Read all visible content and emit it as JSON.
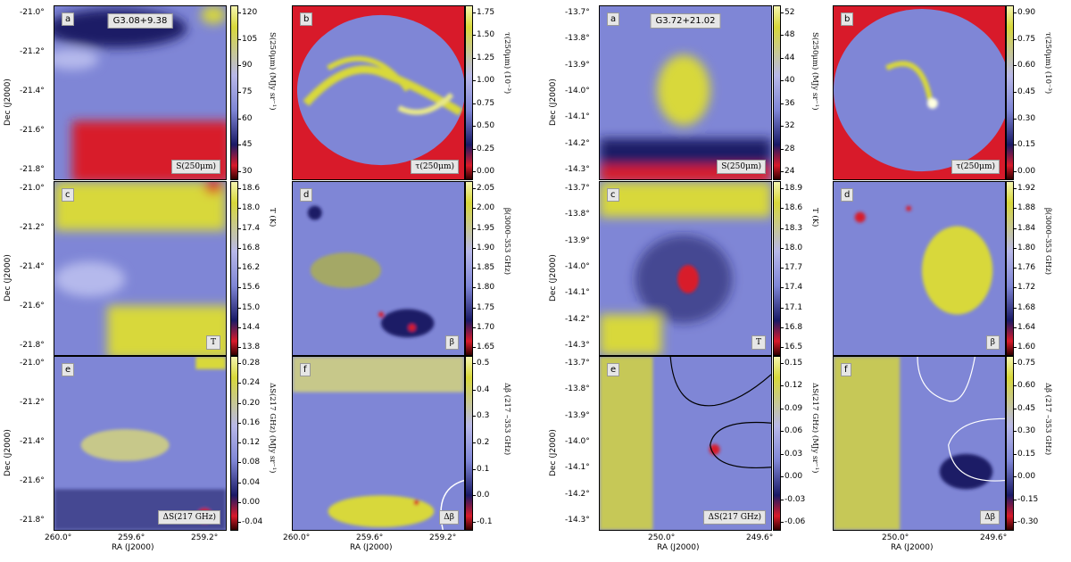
{
  "figure_left": {
    "source_title": "G3.08+9.38",
    "ra_ticks": [
      "260.0°",
      "259.6°",
      "259.2°"
    ],
    "dec_ticks": [
      "-21.0°",
      "-21.2°",
      "-21.4°",
      "-21.6°",
      "-21.8°"
    ],
    "ra_axis_label": "RA (J2000)",
    "dec_axis_label": "Dec (J2000)",
    "panels": [
      {
        "letter": "a",
        "quantity": "S(250μm)",
        "cbar_label": "S(250μm) (MJy sr⁻¹)",
        "cbar_ticks": [
          "120",
          "105",
          "90",
          "75",
          "60",
          "45",
          "30"
        ]
      },
      {
        "letter": "b",
        "quantity": "τ(250μm)",
        "cbar_label": "τ(250μm) (10⁻³)",
        "cbar_ticks": [
          "1.75",
          "1.50",
          "1.25",
          "1.00",
          "0.75",
          "0.50",
          "0.25",
          "0.00"
        ]
      },
      {
        "letter": "c",
        "quantity": "T",
        "cbar_label": "T (K)",
        "cbar_ticks": [
          "18.6",
          "18.0",
          "17.4",
          "16.8",
          "16.2",
          "15.6",
          "15.0",
          "14.4",
          "13.8"
        ]
      },
      {
        "letter": "d",
        "quantity": "β",
        "cbar_label": "β(3000–353 GHz)",
        "cbar_ticks": [
          "2.05",
          "2.00",
          "1.95",
          "1.90",
          "1.85",
          "1.80",
          "1.75",
          "1.70",
          "1.65"
        ]
      },
      {
        "letter": "e",
        "quantity": "ΔS(217 GHz)",
        "cbar_label": "ΔS(217 GHz) (MJy sr⁻¹)",
        "cbar_ticks": [
          "0.28",
          "0.24",
          "0.20",
          "0.16",
          "0.12",
          "0.08",
          "0.04",
          "0.00",
          "-0.04"
        ]
      },
      {
        "letter": "f",
        "quantity": "Δβ",
        "cbar_label": "Δβ (217 –353 GHz)",
        "cbar_ticks": [
          "0.5",
          "0.4",
          "0.3",
          "0.2",
          "0.1",
          "0.0",
          "-0.1"
        ]
      }
    ]
  },
  "figure_right": {
    "source_title": "G3.72+21.02",
    "ra_ticks": [
      "250.0°",
      "249.6°"
    ],
    "dec_ticks": [
      "-13.7°",
      "-13.8°",
      "-13.9°",
      "-14.0°",
      "-14.1°",
      "-14.2°",
      "-14.3°"
    ],
    "ra_axis_label": "RA (J2000)",
    "dec_axis_label": "Dec (J2000)",
    "panels": [
      {
        "letter": "a",
        "quantity": "S(250μm)",
        "cbar_label": "S(250μm) (MJy sr⁻¹)",
        "cbar_ticks": [
          "52",
          "48",
          "44",
          "40",
          "36",
          "32",
          "28",
          "24"
        ]
      },
      {
        "letter": "b",
        "quantity": "τ(250μm)",
        "cbar_label": "τ(250μm) (10⁻³)",
        "cbar_ticks": [
          "0.90",
          "0.75",
          "0.60",
          "0.45",
          "0.30",
          "0.15",
          "0.00"
        ]
      },
      {
        "letter": "c",
        "quantity": "T",
        "cbar_label": "T (K)",
        "cbar_ticks": [
          "18.9",
          "18.6",
          "18.3",
          "18.0",
          "17.7",
          "17.4",
          "17.1",
          "16.8",
          "16.5"
        ]
      },
      {
        "letter": "d",
        "quantity": "β",
        "cbar_label": "β(3000–353 GHz)",
        "cbar_ticks": [
          "1.92",
          "1.88",
          "1.84",
          "1.80",
          "1.76",
          "1.72",
          "1.68",
          "1.64",
          "1.60"
        ]
      },
      {
        "letter": "e",
        "quantity": "ΔS(217 GHz)",
        "cbar_label": "ΔS(217 GHz) (MJy sr⁻¹)",
        "cbar_ticks": [
          "0.15",
          "0.12",
          "0.09",
          "0.06",
          "0.03",
          "0.00",
          "-0.03",
          "-0.06"
        ]
      },
      {
        "letter": "f",
        "quantity": "Δβ",
        "cbar_label": "Δβ (217 –353 GHz)",
        "cbar_ticks": [
          "0.75",
          "0.60",
          "0.45",
          "0.30",
          "0.15",
          "0.00",
          "-0.15",
          "-0.30"
        ]
      }
    ]
  },
  "colors": {
    "high": "#d8d83a",
    "mid": "#7f86d6",
    "low_dark": "#1a1a66",
    "low": "#d81a2a"
  }
}
